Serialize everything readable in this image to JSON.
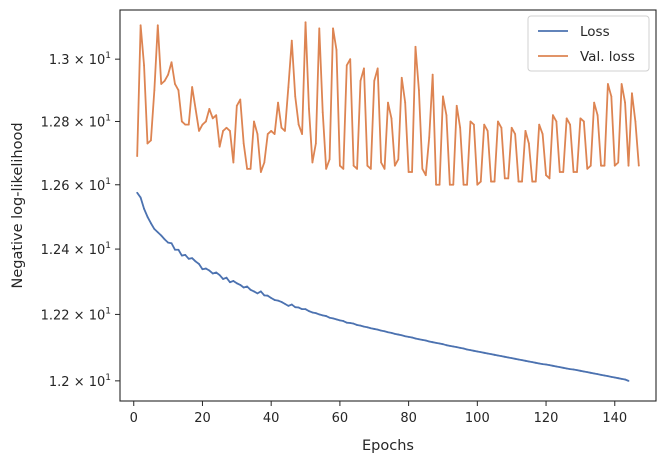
{
  "chart_data": {
    "type": "line",
    "xlabel": "Epochs",
    "ylabel": "Negative log-likelihood",
    "xlim": [
      -4,
      152
    ],
    "ylim": [
      11.94,
      13.16
    ],
    "yscale": "log",
    "x_ticks": [
      0,
      20,
      40,
      60,
      80,
      100,
      120,
      140
    ],
    "y_ticks": [
      {
        "value": 12.0,
        "mantissa": "1.2"
      },
      {
        "value": 12.2,
        "mantissa": "1.22"
      },
      {
        "value": 12.4,
        "mantissa": "1.24"
      },
      {
        "value": 12.6,
        "mantissa": "1.26"
      },
      {
        "value": 12.8,
        "mantissa": "1.28"
      },
      {
        "value": 13.0,
        "mantissa": "1.3"
      }
    ],
    "y_tick_exponent": "1",
    "y_tick_base": "10",
    "y_tick_times": "×",
    "grid": false,
    "legend_position": "top-right",
    "series": [
      {
        "name": "Loss",
        "color": "#4c72b0",
        "x_start": 1,
        "values": [
          12.575,
          12.56,
          12.525,
          12.5,
          12.48,
          12.462,
          12.452,
          12.442,
          12.43,
          12.42,
          12.418,
          12.398,
          12.398,
          12.38,
          12.382,
          12.37,
          12.372,
          12.362,
          12.354,
          12.338,
          12.34,
          12.334,
          12.325,
          12.328,
          12.32,
          12.308,
          12.312,
          12.298,
          12.302,
          12.295,
          12.29,
          12.282,
          12.285,
          12.275,
          12.27,
          12.264,
          12.27,
          12.258,
          12.257,
          12.25,
          12.244,
          12.242,
          12.238,
          12.232,
          12.226,
          12.23,
          12.222,
          12.221,
          12.216,
          12.216,
          12.21,
          12.206,
          12.204,
          12.2,
          12.197,
          12.195,
          12.19,
          12.188,
          12.185,
          12.182,
          12.18,
          12.175,
          12.174,
          12.172,
          12.168,
          12.166,
          12.163,
          12.161,
          12.158,
          12.156,
          12.154,
          12.151,
          12.149,
          12.146,
          12.144,
          12.141,
          12.139,
          12.137,
          12.134,
          12.132,
          12.13,
          12.127,
          12.125,
          12.123,
          12.121,
          12.118,
          12.116,
          12.114,
          12.112,
          12.11,
          12.107,
          12.105,
          12.103,
          12.101,
          12.099,
          12.097,
          12.094,
          12.092,
          12.09,
          12.088,
          12.086,
          12.084,
          12.082,
          12.08,
          12.078,
          12.076,
          12.074,
          12.072,
          12.07,
          12.068,
          12.066,
          12.064,
          12.062,
          12.06,
          12.058,
          12.056,
          12.054,
          12.052,
          12.05,
          12.049,
          12.047,
          12.045,
          12.043,
          12.041,
          12.039,
          12.037,
          12.035,
          12.034,
          12.032,
          12.03,
          12.028,
          12.026,
          12.024,
          12.022,
          12.02,
          12.018,
          12.016,
          12.014,
          12.012,
          12.01,
          12.008,
          12.006,
          12.004,
          12.0
        ]
      },
      {
        "name": "Val. loss",
        "color": "#dd8452",
        "x_start": 1,
        "values": [
          12.69,
          13.11,
          12.98,
          12.73,
          12.74,
          12.9,
          13.11,
          12.92,
          12.93,
          12.95,
          12.99,
          12.92,
          12.9,
          12.8,
          12.79,
          12.79,
          12.91,
          12.84,
          12.77,
          12.79,
          12.8,
          12.84,
          12.81,
          12.82,
          12.72,
          12.77,
          12.78,
          12.77,
          12.67,
          12.85,
          12.87,
          12.73,
          12.65,
          12.65,
          12.8,
          12.76,
          12.64,
          12.67,
          12.76,
          12.77,
          12.76,
          12.86,
          12.78,
          12.77,
          12.91,
          13.06,
          12.88,
          12.79,
          12.76,
          13.12,
          12.84,
          12.67,
          12.73,
          13.1,
          12.83,
          12.65,
          12.68,
          13.1,
          13.03,
          12.66,
          12.65,
          12.98,
          13.0,
          12.66,
          12.65,
          12.93,
          12.97,
          12.66,
          12.65,
          12.93,
          12.97,
          12.67,
          12.65,
          12.86,
          12.81,
          12.66,
          12.68,
          12.94,
          12.86,
          12.64,
          12.64,
          13.04,
          12.9,
          12.65,
          12.63,
          12.75,
          12.95,
          12.6,
          12.6,
          12.88,
          12.82,
          12.6,
          12.6,
          12.85,
          12.78,
          12.6,
          12.6,
          12.8,
          12.79,
          12.6,
          12.61,
          12.79,
          12.77,
          12.61,
          12.61,
          12.8,
          12.78,
          12.62,
          12.62,
          12.78,
          12.76,
          12.61,
          12.61,
          12.77,
          12.73,
          12.61,
          12.61,
          12.79,
          12.76,
          12.63,
          12.62,
          12.82,
          12.8,
          12.64,
          12.64,
          12.81,
          12.79,
          12.64,
          12.64,
          12.81,
          12.8,
          12.65,
          12.66,
          12.86,
          12.82,
          12.66,
          12.66,
          12.92,
          12.88,
          12.66,
          12.67,
          12.92,
          12.86,
          12.66,
          12.89,
          12.8,
          12.66
        ]
      }
    ]
  }
}
